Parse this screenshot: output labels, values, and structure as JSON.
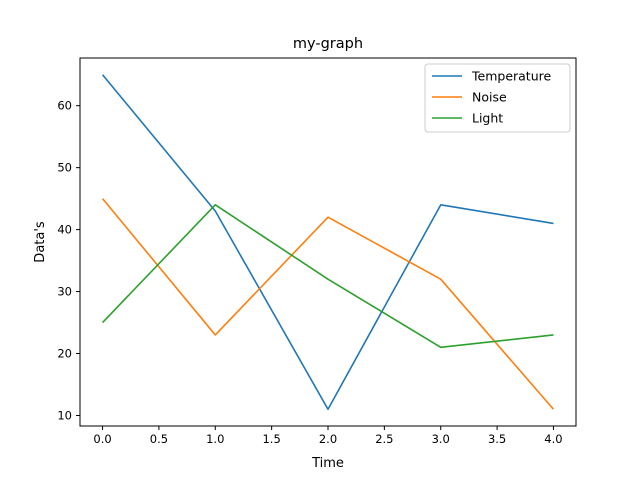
{
  "chart_data": {
    "type": "line",
    "title": "my-graph",
    "xlabel": "Time",
    "ylabel": "Data's",
    "x": [
      0,
      1,
      2,
      3,
      4
    ],
    "xlim": [
      -0.2,
      4.2
    ],
    "ylim": [
      8.3,
      67.7
    ],
    "xticks": [
      "0.0",
      "0.5",
      "1.0",
      "1.5",
      "2.0",
      "2.5",
      "3.0",
      "3.5",
      "4.0"
    ],
    "yticks": [
      "10",
      "20",
      "30",
      "40",
      "50",
      "60"
    ],
    "grid": false,
    "legend_position": "top-right",
    "series": [
      {
        "name": "Temperature",
        "color": "#1f77b4",
        "values": [
          65,
          43,
          11,
          44,
          41
        ]
      },
      {
        "name": "Noise",
        "color": "#ff7f0e",
        "values": [
          45,
          23,
          42,
          32,
          11
        ]
      },
      {
        "name": "Light",
        "color": "#2ca02c",
        "values": [
          25,
          44,
          32,
          21,
          23
        ]
      }
    ]
  }
}
